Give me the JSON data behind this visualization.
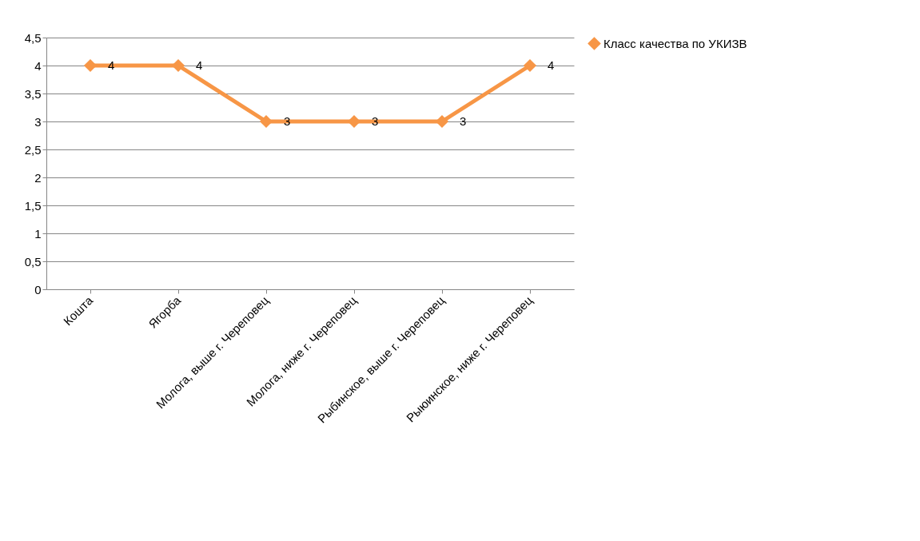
{
  "chart_data": {
    "type": "line",
    "categories": [
      "Кошта",
      "Ягорба",
      "Молога, выше г. Череповец",
      "Молога, ниже г. Череповец",
      "Рыбинское, выше г. Череповец",
      "Рыюинское, ниже г. Череповец"
    ],
    "series": [
      {
        "name": "Класс качества по УКИЗВ",
        "color": "#f79646",
        "values": [
          4,
          4,
          3,
          3,
          3,
          4
        ]
      }
    ],
    "ylim": [
      0,
      4.5
    ],
    "yticks": [
      0,
      {
        "value": 0.5,
        "label": "0,5"
      },
      1,
      {
        "value": 1.5,
        "label": "1,5"
      },
      2,
      {
        "value": 2.5,
        "label": "2,5"
      },
      3,
      {
        "value": 3.5,
        "label": "3,5"
      },
      4,
      {
        "value": 4.5,
        "label": "4,5"
      }
    ],
    "grid": "y",
    "legend": "right",
    "marker": "diamond",
    "line_style": "solid",
    "data_labels": true
  }
}
